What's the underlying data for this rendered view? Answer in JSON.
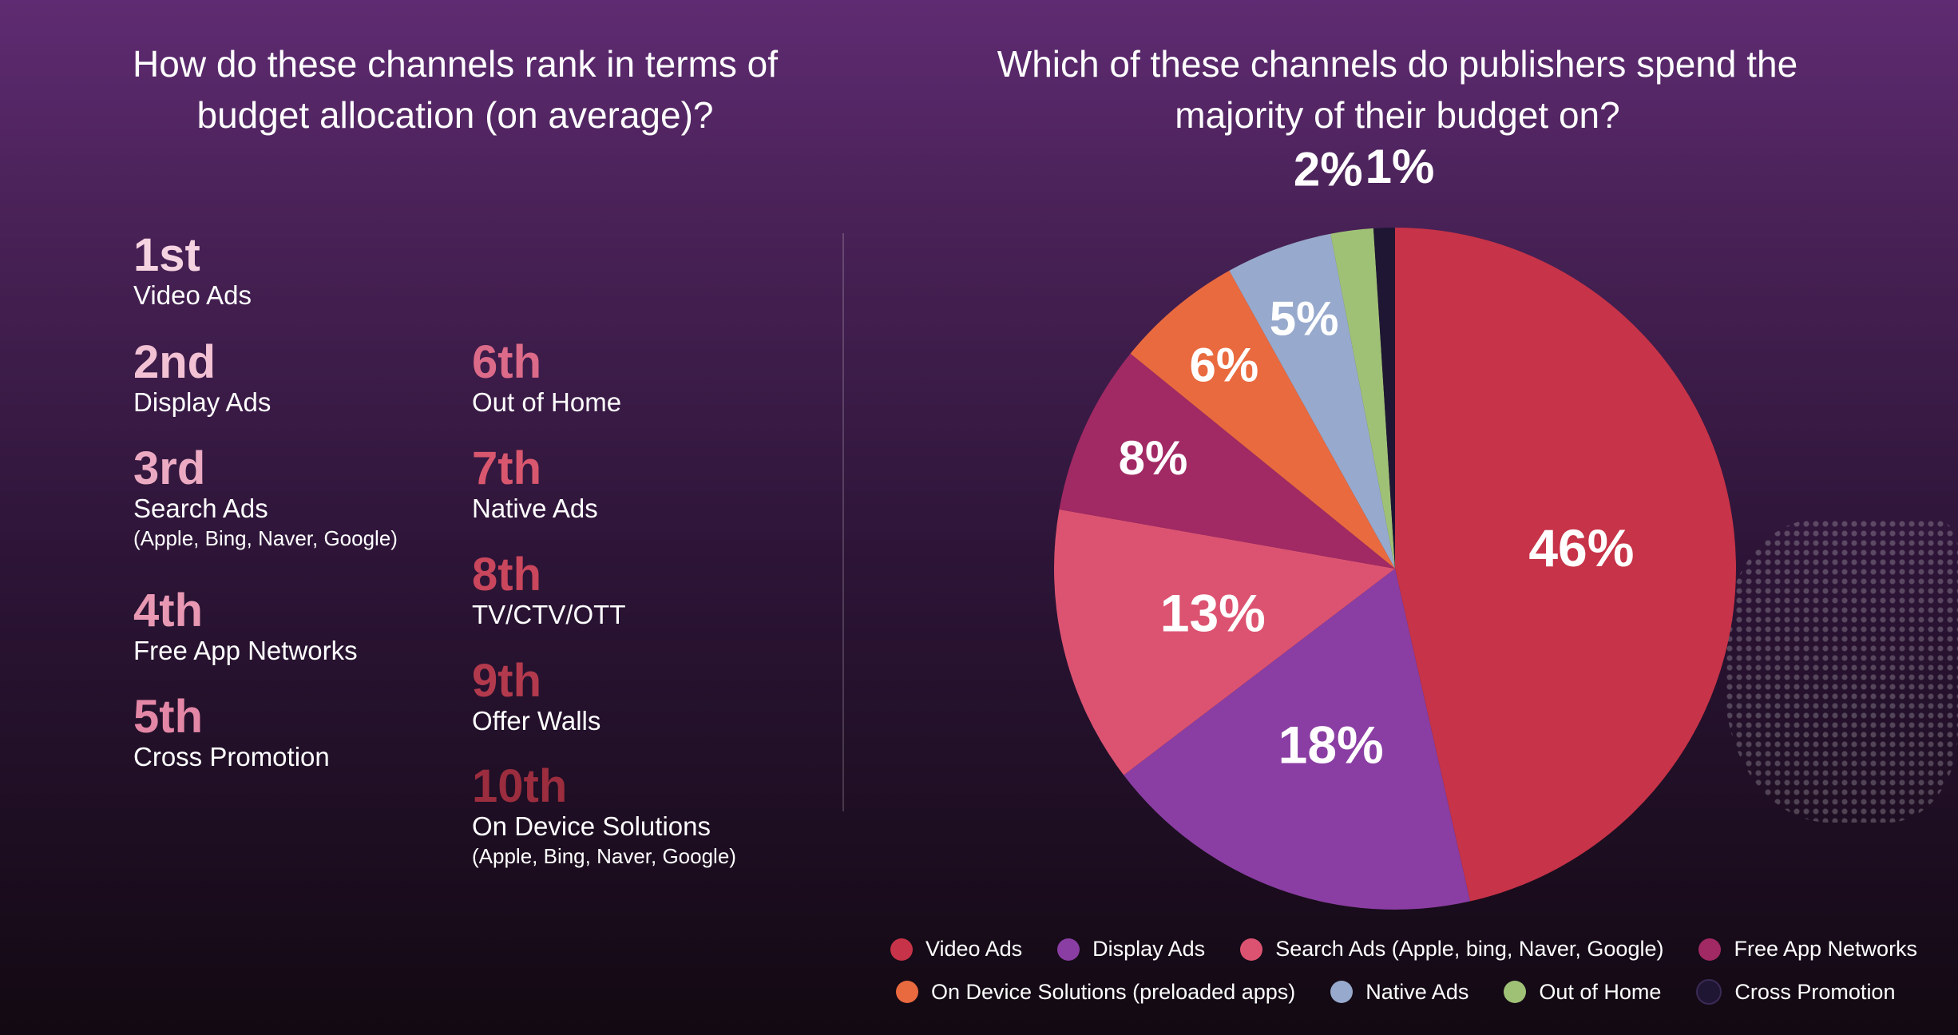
{
  "left_panel": {
    "heading": "How do these channels rank in terms of budget allocation (on average)?",
    "ranks": [
      {
        "rank": "1st",
        "name": "Video Ads",
        "sub": "",
        "color": "#f6d3e1"
      },
      {
        "rank": "2nd",
        "name": "Display Ads",
        "sub": "",
        "color": "#f2c2d4"
      },
      {
        "rank": "3rd",
        "name": "Search Ads",
        "sub": "(Apple, Bing, Naver, Google)",
        "color": "#ecaac2"
      },
      {
        "rank": "4th",
        "name": "Free App Networks",
        "sub": "",
        "color": "#e898b3"
      },
      {
        "rank": "5th",
        "name": "Cross Promotion",
        "sub": "",
        "color": "#e487a6"
      },
      {
        "rank": "6th",
        "name": "Out of Home",
        "sub": "",
        "color": "#dc6a89"
      },
      {
        "rank": "7th",
        "name": "Native Ads",
        "sub": "",
        "color": "#d9576e"
      },
      {
        "rank": "8th",
        "name": "TV/CTV/OTT",
        "sub": "",
        "color": "#c9465c"
      },
      {
        "rank": "9th",
        "name": "Offer Walls",
        "sub": "",
        "color": "#b33a4d"
      },
      {
        "rank": "10th",
        "name": "On Device Solutions",
        "sub": "(Apple, Bing, Naver, Google)",
        "color": "#9b2d3e"
      }
    ]
  },
  "right_panel": {
    "heading": "Which of these channels do publishers spend the majority of their budget on?"
  },
  "chart_data": {
    "type": "pie",
    "title": "Which of these channels do publishers spend the majority of their budget on?",
    "unit": "%",
    "slices": [
      {
        "label": "Video Ads",
        "value": 46,
        "display": "46%",
        "color": "#c73348"
      },
      {
        "label": "Display Ads",
        "value": 18,
        "display": "18%",
        "color": "#8a3ea3"
      },
      {
        "label": "Search Ads (Apple, bing, Naver, Google)",
        "value": 13,
        "display": "13%",
        "color": "#dc5371"
      },
      {
        "label": "Free App Networks",
        "value": 8,
        "display": "8%",
        "color": "#a12964"
      },
      {
        "label": "On Device Solutions (preloaded apps)",
        "value": 6,
        "display": "6%",
        "color": "#e96a3f"
      },
      {
        "label": "Native Ads",
        "value": 5,
        "display": "5%",
        "color": "#97aacd"
      },
      {
        "label": "Out of Home",
        "value": 2,
        "display": "2%",
        "color": "#9fc176"
      },
      {
        "label": "Cross Promotion",
        "value": 1,
        "display": "1%",
        "color": "#1f1633"
      }
    ],
    "legend_position": "bottom"
  }
}
